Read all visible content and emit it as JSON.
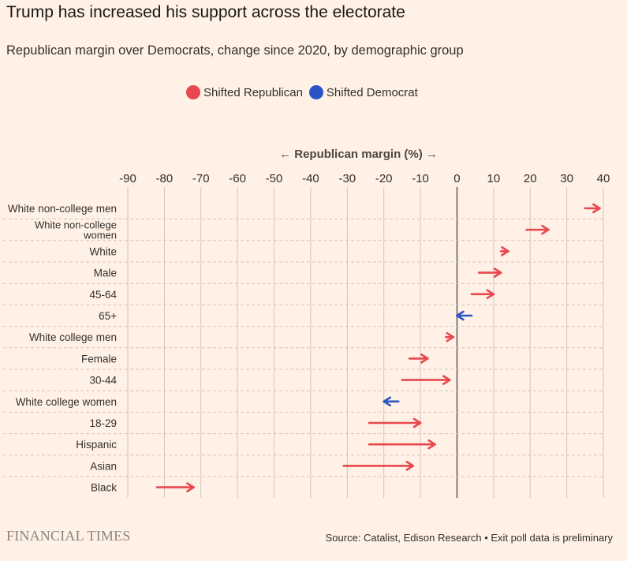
{
  "title": "Trump has increased his support across the electorate",
  "subtitle": "Republican margin over Democrats, change since 2020, by demographic group",
  "legend": [
    {
      "label": "Shifted Republican",
      "color": "#e8474e"
    },
    {
      "label": "Shifted Democrat",
      "color": "#2b55c4"
    }
  ],
  "footer": {
    "logo": "FINANCIAL TIMES",
    "source": "Source: Catalist, Edison Research • Exit poll data is preliminary"
  },
  "chart_data": {
    "type": "arrow",
    "xlabel": "← Republican margin (%) →",
    "xlim": [
      -90,
      40
    ],
    "xticks": [
      -90,
      -80,
      -70,
      -60,
      -50,
      -40,
      -30,
      -20,
      -10,
      0,
      10,
      20,
      30,
      40
    ],
    "xtick_labels": [
      "-90",
      "-80",
      "-70",
      "-60",
      "-50",
      "-40",
      "-30",
      "-20",
      "-10",
      "0",
      "10",
      "20",
      "30",
      "40"
    ],
    "grid": "vertical",
    "legend_position": "top",
    "rows": [
      {
        "label": "White non-college men",
        "from": 35,
        "to": 39,
        "shift": "Republican"
      },
      {
        "label": "White non-college\nwomen",
        "from": 19,
        "to": 25,
        "shift": "Republican"
      },
      {
        "label": "White",
        "from": 12,
        "to": 14,
        "shift": "Republican"
      },
      {
        "label": "Male",
        "from": 6,
        "to": 12,
        "shift": "Republican"
      },
      {
        "label": "45-64",
        "from": 4,
        "to": 10,
        "shift": "Republican"
      },
      {
        "label": "65+",
        "from": 4,
        "to": 0,
        "shift": "Democrat"
      },
      {
        "label": "White college men",
        "from": -3,
        "to": -1,
        "shift": "Republican"
      },
      {
        "label": "Female",
        "from": -13,
        "to": -8,
        "shift": "Republican"
      },
      {
        "label": "30-44",
        "from": -15,
        "to": -2,
        "shift": "Republican"
      },
      {
        "label": "White college women",
        "from": -16,
        "to": -20,
        "shift": "Democrat"
      },
      {
        "label": "18-29",
        "from": -24,
        "to": -10,
        "shift": "Republican"
      },
      {
        "label": "Hispanic",
        "from": -24,
        "to": -6,
        "shift": "Republican"
      },
      {
        "label": "Asian",
        "from": -31,
        "to": -12,
        "shift": "Republican"
      },
      {
        "label": "Black",
        "from": -82,
        "to": -72,
        "shift": "Republican"
      }
    ]
  }
}
